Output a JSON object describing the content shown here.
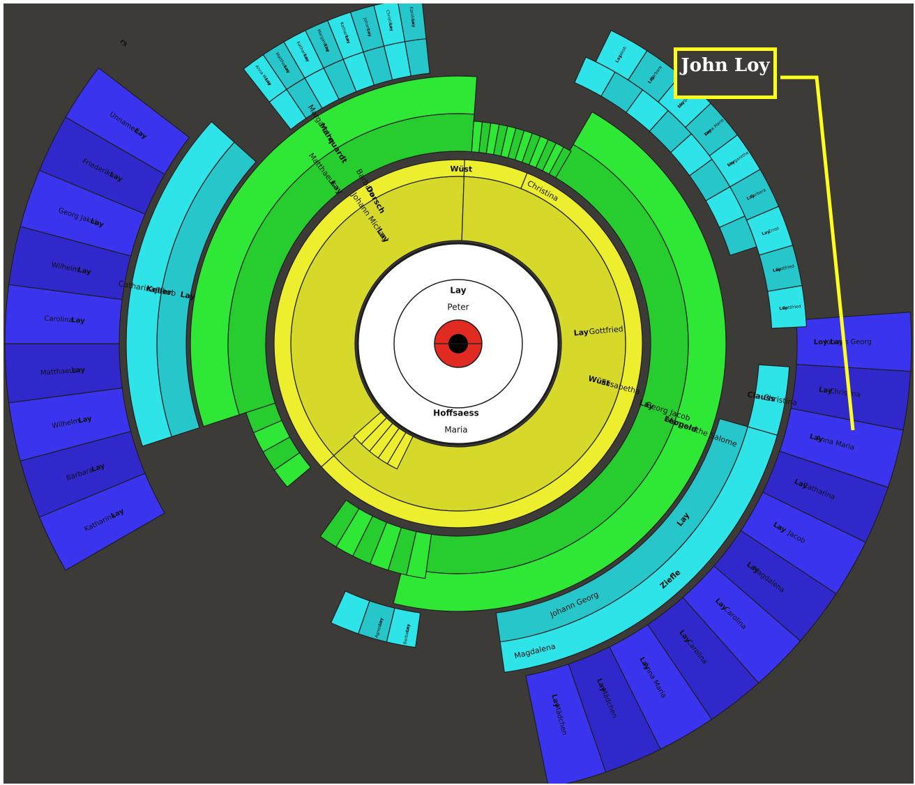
{
  "colors": {
    "background": "#3d3b37",
    "gen0_ring": "#e02a22",
    "gen1": "#ffffff",
    "gen2_a": "#ecee2e",
    "gen2_b": "#d6d82a",
    "gen3_a": "#2fe836",
    "gen3_b": "#27cc2e",
    "gen4_a": "#2fe4e8",
    "gen4_b": "#27c6cb",
    "gen5_a": "#3a34ee",
    "gen5_b": "#3128cc",
    "empty": "#8e8e8a",
    "callout": "#ffff1e"
  },
  "callout": {
    "label": "John Loy"
  },
  "center": {
    "surname": "Lay",
    "given": "Peter"
  },
  "mother": {
    "surname": "Hoffsaess",
    "given": "Maria"
  },
  "gen2": {
    "father": {
      "surname": "Lay",
      "given": "Johann Michael"
    },
    "paternal_grandmother": {
      "surname": "Dorsch",
      "given": "Barbara"
    },
    "maternal_grandfather": {
      "surname": "Lay",
      "given": "Gottfried"
    },
    "maternal_grandmother": {
      "surname": "Wüst",
      "given": "Elisabetha"
    },
    "top_ancestor": {
      "surname": "Wüst",
      "given": "Christina"
    }
  },
  "gen3": [
    {
      "surname": "Lay",
      "given": "Matthaeus"
    },
    {
      "surname": "Marquardt",
      "given": "Margarethe"
    },
    {
      "surname": "Lay",
      "given": "Georg Jacob"
    },
    {
      "surname": "Leopold",
      "given": "Margarethe Salome"
    }
  ],
  "gen4": [
    {
      "surname": "Keller",
      "given": "Catharina"
    },
    {
      "surname": "Lay",
      "given": "Jakob"
    },
    {
      "surname": "Lay",
      "given": "Johann Georg"
    },
    {
      "surname": "Ziefle",
      "given": "Magdalena"
    },
    {
      "surname": "Clauss",
      "given": "Christina"
    }
  ],
  "gen5_left": [
    {
      "surname": "Lay",
      "given": "Katharina"
    },
    {
      "surname": "Lay",
      "given": "Barbara"
    },
    {
      "surname": "Lay",
      "given": "Wilhelm"
    },
    {
      "surname": "Lay",
      "given": "Matthaeus"
    },
    {
      "surname": "Lay",
      "given": "Carolina"
    },
    {
      "surname": "Lay",
      "given": "Wilhelm"
    },
    {
      "surname": "Lay",
      "given": "Georg Jakob"
    },
    {
      "surname": "Lay",
      "given": "Friederika"
    },
    {
      "surname": "Lay",
      "given": "Unnamed"
    }
  ],
  "gen5_left_edge": "rs",
  "gen5_right": [
    {
      "surname": "Loy Lay",
      "given": "Johann Georg"
    },
    {
      "surname": "Lay",
      "given": "Christina"
    },
    {
      "surname": "Lay",
      "given": "Anna Maria"
    },
    {
      "surname": "Lay",
      "given": "Catharina"
    },
    {
      "surname": "Lay",
      "given": "Jacob"
    },
    {
      "surname": "Lay",
      "given": "Magdalena"
    },
    {
      "surname": "Lay",
      "given": "Carolina"
    },
    {
      "surname": "Lay",
      "given": "Carolina"
    },
    {
      "surname": "Lay",
      "given": "Anna Maria"
    },
    {
      "surname": "Lay",
      "given": "Mädchen"
    },
    {
      "surname": "Lay",
      "given": "Mädchen"
    }
  ],
  "gen5_top_left": [
    {
      "surname": "Lay",
      "given": "Anna Maria"
    },
    {
      "surname": "Lay",
      "given": "Matthaeus"
    },
    {
      "surname": "Lay",
      "given": "Katharina"
    },
    {
      "surname": "Lay",
      "given": "Margarethe"
    },
    {
      "surname": "Lay",
      "given": "Katharina"
    },
    {
      "surname": "Lay",
      "given": "Johann"
    },
    {
      "surname": "Lay",
      "given": "Christina"
    },
    {
      "surname": "Lay",
      "given": "Karoline"
    }
  ],
  "gen5_top_empty": {
    "surname": "Loy Lay",
    "given": "Johann"
  },
  "gen5_top_right": [
    {
      "surname": "Lay",
      "given": "Jakob"
    },
    {
      "surname": "Lay",
      "given": "Barbara"
    },
    {
      "surname": "Lay",
      "given": "Margarethe"
    },
    {
      "surname": "Lay",
      "given": "Anna Marie"
    },
    {
      "surname": "Lay",
      "given": "Margarethe"
    },
    {
      "surname": "Lay",
      "given": "Barbara"
    },
    {
      "surname": "Lay",
      "given": "Ernst"
    },
    {
      "surname": "Lay",
      "given": "Gottfried"
    },
    {
      "surname": "Lay",
      "given": "Gottfried"
    }
  ],
  "gen5_bottom": [
    {
      "surname": "Lay",
      "given": "Barbara"
    },
    {
      "surname": "Lay",
      "given": "Agnesia"
    }
  ]
}
